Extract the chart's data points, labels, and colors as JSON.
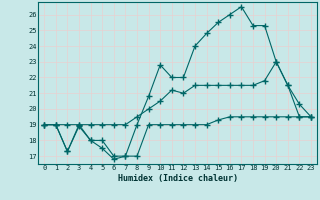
{
  "title": "",
  "xlabel": "Humidex (Indice chaleur)",
  "bg_color": "#c8e8e8",
  "grid_color": "#d4eeee",
  "line_color": "#006666",
  "xlim": [
    -0.5,
    23.5
  ],
  "ylim": [
    16.5,
    26.8
  ],
  "xticks": [
    0,
    1,
    2,
    3,
    4,
    5,
    6,
    7,
    8,
    9,
    10,
    11,
    12,
    13,
    14,
    15,
    16,
    17,
    18,
    19,
    20,
    21,
    22,
    23
  ],
  "yticks": [
    17,
    18,
    19,
    20,
    21,
    22,
    23,
    24,
    25,
    26
  ],
  "series": [
    {
      "x": [
        0,
        1,
        2,
        3,
        4,
        5,
        6,
        7,
        8,
        9,
        10,
        11,
        12,
        13,
        14,
        15,
        16,
        17,
        18,
        19,
        20,
        21,
        22,
        23
      ],
      "y": [
        19,
        19,
        17.3,
        18.9,
        18,
        17.5,
        16.8,
        17,
        17,
        19,
        19,
        19,
        19,
        19,
        19,
        19.3,
        19.5,
        19.5,
        19.5,
        19.5,
        19.5,
        19.5,
        19.5,
        19.5
      ]
    },
    {
      "x": [
        0,
        1,
        2,
        3,
        4,
        5,
        6,
        7,
        8,
        9,
        10,
        11,
        12,
        13,
        14,
        15,
        16,
        17,
        18,
        19,
        20,
        21,
        22,
        23
      ],
      "y": [
        19,
        19,
        19,
        19,
        19,
        19,
        19,
        19,
        19.5,
        20,
        20.5,
        21.2,
        21,
        21.5,
        21.5,
        21.5,
        21.5,
        21.5,
        21.5,
        21.8,
        23,
        21.5,
        19.5,
        19.5
      ]
    },
    {
      "x": [
        0,
        1,
        2,
        3,
        4,
        5,
        6,
        7,
        8,
        9,
        10,
        11,
        12,
        13,
        14,
        15,
        16,
        17,
        18,
        19,
        20,
        21,
        22,
        23
      ],
      "y": [
        19,
        19,
        17.3,
        19,
        18,
        18,
        17,
        17,
        19,
        20.8,
        22.8,
        22,
        22,
        24,
        24.8,
        25.5,
        26,
        26.5,
        25.3,
        25.3,
        23,
        21.5,
        20.3,
        19.5
      ]
    }
  ]
}
